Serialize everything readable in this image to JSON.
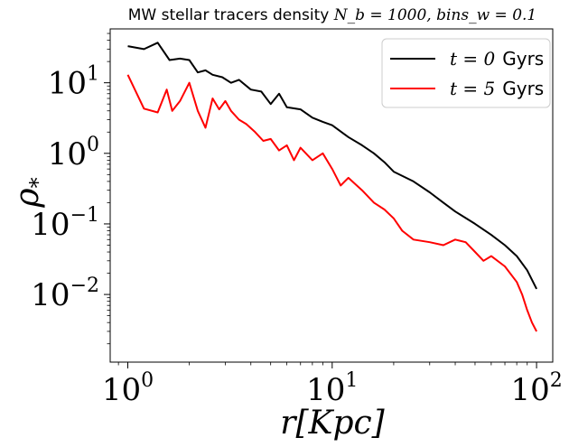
{
  "chart_data": {
    "type": "line",
    "title_text": "MW stellar tracers density ",
    "title_math": "N_b = 1000, bins_w = 0.1",
    "xlabel": "r[Kpc]",
    "ylabel": "ρ",
    "ylabel_sub": "*",
    "xscale": "log",
    "yscale": "log",
    "xlim": [
      0.82,
      120
    ],
    "ylim": [
      0.0011,
      58
    ],
    "xticks": [
      {
        "value": 1,
        "base": "10",
        "exp": "0"
      },
      {
        "value": 10,
        "base": "10",
        "exp": "1"
      },
      {
        "value": 100,
        "base": "10",
        "exp": "2"
      }
    ],
    "yticks": [
      {
        "value": 0.01,
        "base": "10",
        "exp": "−2"
      },
      {
        "value": 0.1,
        "base": "10",
        "exp": "−1"
      },
      {
        "value": 1,
        "base": "10",
        "exp": "0"
      },
      {
        "value": 10,
        "base": "10",
        "exp": "1"
      }
    ],
    "legend_position": "top-right",
    "series": [
      {
        "name_math": "t = 0",
        "name_unit": "Gyrs",
        "color": "#000000",
        "x": [
          1.0,
          1.2,
          1.4,
          1.6,
          1.8,
          2.0,
          2.2,
          2.4,
          2.6,
          2.9,
          3.2,
          3.5,
          4.0,
          4.5,
          5.0,
          5.5,
          6.0,
          7.0,
          8.0,
          9.0,
          10.0,
          12.0,
          14.0,
          16.0,
          18.0,
          20.0,
          25.0,
          30.0,
          35.0,
          40.0,
          50.0,
          60.0,
          70.0,
          80.0,
          90.0,
          100.0
        ],
        "y": [
          33.0,
          30.0,
          37.0,
          21.0,
          22.0,
          21.0,
          14.0,
          15.0,
          13.0,
          12.0,
          10.0,
          11.0,
          8.0,
          7.5,
          5.0,
          7.0,
          4.5,
          4.2,
          3.2,
          2.8,
          2.5,
          1.7,
          1.3,
          1.0,
          0.75,
          0.55,
          0.4,
          0.28,
          0.2,
          0.15,
          0.1,
          0.07,
          0.05,
          0.035,
          0.022,
          0.012
        ]
      },
      {
        "name_math": "t = 5",
        "name_unit": "Gyrs",
        "color": "#ff0000",
        "x": [
          1.0,
          1.2,
          1.4,
          1.55,
          1.65,
          1.8,
          2.0,
          2.2,
          2.4,
          2.6,
          2.8,
          3.0,
          3.2,
          3.5,
          3.8,
          4.2,
          4.6,
          5.0,
          5.5,
          6.0,
          6.5,
          7.0,
          8.0,
          9.0,
          10.0,
          11.0,
          12.0,
          14.0,
          16.0,
          18.0,
          20.0,
          22.0,
          25.0,
          30.0,
          35.0,
          40.0,
          45.0,
          50.0,
          55.0,
          60.0,
          70.0,
          80.0,
          85.0,
          90.0,
          95.0,
          100.0
        ],
        "y": [
          13.0,
          4.3,
          3.8,
          8.0,
          4.0,
          5.5,
          10.0,
          4.0,
          2.3,
          6.0,
          4.2,
          5.5,
          4.0,
          3.0,
          2.6,
          2.0,
          1.5,
          1.6,
          1.1,
          1.3,
          0.8,
          1.2,
          0.8,
          1.0,
          0.6,
          0.35,
          0.45,
          0.3,
          0.2,
          0.16,
          0.12,
          0.08,
          0.06,
          0.055,
          0.05,
          0.06,
          0.055,
          0.04,
          0.03,
          0.035,
          0.025,
          0.015,
          0.01,
          0.006,
          0.004,
          0.003
        ]
      }
    ]
  }
}
